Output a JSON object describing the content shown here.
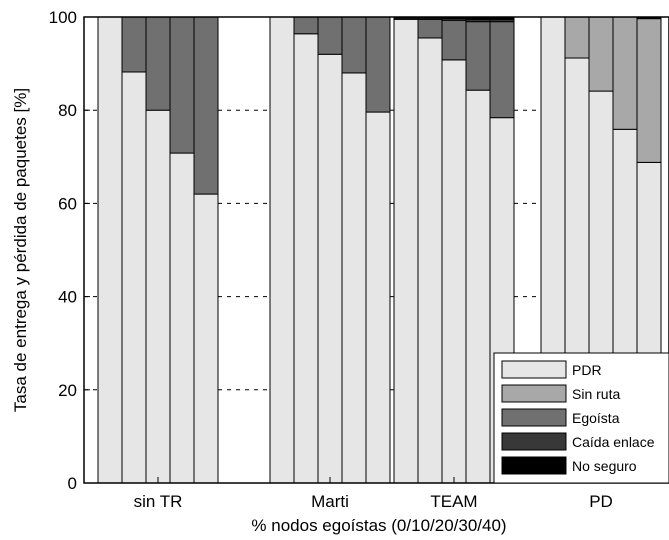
{
  "chart_data": {
    "type": "bar",
    "stacked": true,
    "xlabel": "% nodos egoístas (0/10/20/30/40)",
    "ylabel": "Tasa de entrega y pérdida de paquetes [%]",
    "ylim": [
      0,
      100
    ],
    "yticks": [
      "0",
      "20",
      "40",
      "60",
      "80",
      "100"
    ],
    "legend_position": "bottom-right",
    "groups": [
      "sin TR",
      "Marti",
      "TEAM",
      "PD"
    ],
    "bars_per_group": [
      "0",
      "10",
      "20",
      "30",
      "40"
    ],
    "series": [
      {
        "name": "PDR",
        "color": "#e6e6e6",
        "values": [
          [
            100,
            88.2,
            80,
            70.8,
            62
          ],
          [
            100,
            96.4,
            92,
            88,
            79.6
          ],
          [
            99.5,
            95.5,
            90.8,
            84.3,
            78.4
          ],
          [
            100,
            91.2,
            84.1,
            75.9,
            68.8
          ]
        ]
      },
      {
        "name": "Sin ruta",
        "color": "#a8a8a8",
        "values": [
          [
            0,
            0,
            0,
            0,
            0
          ],
          [
            0,
            0,
            0,
            0,
            0
          ],
          [
            0,
            0,
            0,
            0,
            0
          ],
          [
            0,
            8.8,
            15.9,
            24.1,
            30.9
          ]
        ]
      },
      {
        "name": "Egoísta",
        "color": "#707070",
        "values": [
          [
            0,
            11.8,
            20,
            29.2,
            38
          ],
          [
            0,
            3.6,
            8,
            12,
            20.4
          ],
          [
            0,
            4,
            8.5,
            14.7,
            20.6
          ],
          [
            0,
            0,
            0,
            0,
            0
          ]
        ]
      },
      {
        "name": "Caída enlace",
        "color": "#383838",
        "values": [
          [
            0,
            0,
            0,
            0,
            0
          ],
          [
            0,
            0,
            0,
            0,
            0
          ],
          [
            0.3,
            0.3,
            0.4,
            0.5,
            0.5
          ],
          [
            0,
            0,
            0,
            0,
            0.1
          ]
        ]
      },
      {
        "name": "No seguro",
        "color": "#000000",
        "values": [
          [
            0,
            0,
            0,
            0,
            0
          ],
          [
            0,
            0,
            0,
            0,
            0
          ],
          [
            0.2,
            0.2,
            0.3,
            0.5,
            0.5
          ],
          [
            0,
            0,
            0,
            0,
            0.2
          ]
        ]
      }
    ]
  }
}
